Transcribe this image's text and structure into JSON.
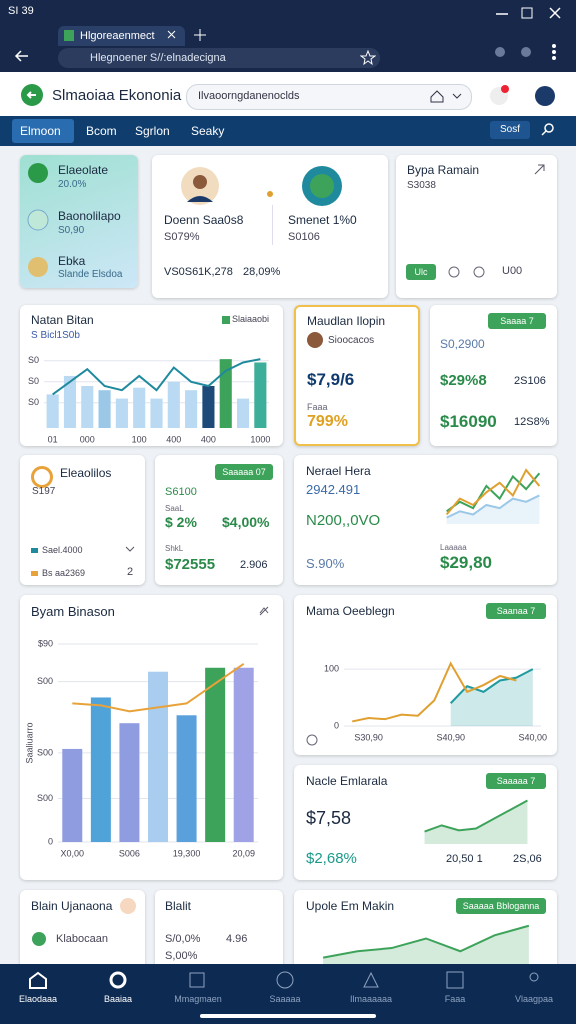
{
  "status_bar": {
    "time": "SI 39"
  },
  "browser": {
    "tab": "Hlgoreaenmect",
    "url": "Hlegnoener S//:elnadecigna"
  },
  "header": {
    "title": "Slmaoiaa Ekononia",
    "search": "Ilvaoorngdanenoclds"
  },
  "nav": {
    "tabs": [
      "Elmoon",
      "Bcom",
      "Sgrlon",
      "Seaky"
    ],
    "account": "Sosf"
  },
  "watchlist": [
    {
      "name": "Elaeolate",
      "value": "20.0%"
    },
    {
      "name": "Baonolilapo",
      "value": "S0,90"
    },
    {
      "name": "Ebka",
      "value": "Slande Elsdoa"
    }
  ],
  "people": {
    "items": [
      {
        "name": "Doenn Saa0s8",
        "value": "S079%"
      },
      {
        "name": "Smenet 1%0",
        "value": "S0106"
      }
    ],
    "footer": [
      "VS0S6",
      "1K,278",
      "28,09%"
    ]
  },
  "summary": {
    "title": "Bypa Ramain",
    "value": "S3038",
    "button": "Ulc",
    "count": "U00"
  },
  "natan": {
    "title": "Natan Bitan",
    "subtitle": "S Bicl1S0b",
    "legend": "Slaiaaobi",
    "chart": {
      "type": "combo",
      "ylim": [
        0,
        100
      ],
      "yticks": [
        {
          "value": 30,
          "label": "S0"
        },
        {
          "value": 55,
          "label": "S0"
        },
        {
          "value": 80,
          "label": "S0"
        }
      ],
      "categories": [
        "01",
        null,
        "000",
        null,
        null,
        "100",
        null,
        "400",
        null,
        "400",
        null,
        null,
        "1000"
      ],
      "series": [
        {
          "kind": "bar",
          "color": "#b9daf2",
          "colors": [
            "#b9daf2",
            "#b9daf2",
            "#b9daf2",
            "#9cc8e8",
            "#b9daf2",
            "#b9daf2",
            "#b9daf2",
            "#b9daf2",
            "#b9daf2",
            "#1e4a7a",
            "#3da35a",
            "#b9daf2",
            "#3cae9a"
          ],
          "values": [
            40,
            62,
            50,
            45,
            35,
            48,
            35,
            55,
            45,
            50,
            82,
            35,
            78
          ]
        },
        {
          "kind": "line",
          "color": "#1f8a9e",
          "values": [
            40,
            55,
            70,
            50,
            45,
            62,
            45,
            72,
            55,
            50,
            68,
            78,
            82
          ]
        }
      ]
    }
  },
  "highlight": {
    "title": "Maudlan Ilopin",
    "user": "Sioocacos",
    "value": "$7,9/6",
    "label": "Faaa",
    "change": "799%"
  },
  "stats": {
    "badge": "Saaaa 7",
    "items": [
      "S0,2900",
      "$29%8",
      "2S106",
      "$16090",
      "12S8%"
    ]
  },
  "assets": {
    "title": "Eleaolilos",
    "value": "S197",
    "rows": [
      "Sael.4000",
      "Bs aa2369"
    ],
    "count": "2"
  },
  "returns": {
    "badge": "Saaaaa 07",
    "items": [
      "S6100",
      "SaaL",
      "$ 2%",
      "$4,00%",
      "ShkL",
      "$72555",
      "2.906"
    ]
  },
  "nerael": {
    "title": "Nerael Hera",
    "items": [
      "2942.491",
      "N200,,0VO",
      "S.90%",
      "Laaaaa",
      "$29,80"
    ],
    "chart": {
      "type": "line",
      "series": [
        {
          "kind": "area",
          "color": "#9cc8e8",
          "values": [
            10,
            20,
            15,
            30,
            25,
            40,
            35,
            45
          ]
        },
        {
          "kind": "line",
          "color": "#3da35a",
          "values": [
            20,
            35,
            25,
            60,
            40,
            75,
            55,
            80
          ]
        },
        {
          "kind": "line",
          "color": "#e0a030",
          "values": [
            15,
            40,
            30,
            50,
            65,
            45,
            85,
            60
          ]
        }
      ]
    }
  },
  "byam": {
    "title": "Byam Binason",
    "chart": {
      "type": "combo",
      "ylabel": "Saaliuarro",
      "ylim": [
        0,
        100
      ],
      "yticks": [
        0,
        {
          "value": 22,
          "label": "S00"
        },
        {
          "value": 45,
          "label": "S00"
        },
        {
          "value": 81,
          "label": "S00"
        },
        {
          "value": 100,
          "label": "$90"
        }
      ],
      "categories": [
        "X0,00",
        null,
        "S006",
        null,
        "19,300",
        null,
        "20,09"
      ],
      "series": [
        {
          "kind": "bar",
          "color": "#8f9de0",
          "colors": [
            "#8f9de0",
            "#4fa3d8",
            "#8f9de0",
            "#a9cdef",
            "#5aa0dc",
            "#3da35a",
            "#9fa3e6"
          ],
          "values": [
            47,
            73,
            60,
            86,
            64,
            88,
            88
          ]
        },
        {
          "kind": "line",
          "color": "#e8a23a",
          "values": [
            70,
            69,
            66,
            68,
            70,
            80,
            90
          ]
        }
      ]
    }
  },
  "mama": {
    "title": "Mama Oeeblegn",
    "badge": "Saanaa 7",
    "chart": {
      "type": "line",
      "ylim": [
        0,
        160
      ],
      "yticks": [
        0,
        100
      ],
      "categories": [
        null,
        "S30,90",
        null,
        null,
        null,
        null,
        "S40,90",
        null,
        null,
        null,
        null,
        "S40,00"
      ],
      "series": [
        {
          "kind": "area",
          "color": "#1f9aa0",
          "values": [
            null,
            null,
            null,
            null,
            null,
            null,
            40,
            70,
            60,
            80,
            85,
            100
          ]
        },
        {
          "kind": "line",
          "color": "#e0a030",
          "values": [
            8,
            14,
            12,
            20,
            18,
            45,
            110,
            60,
            72,
            88,
            80,
            null
          ]
        }
      ]
    }
  },
  "nacle": {
    "title": "Nacle Emlarala",
    "badge": "Saaaaa 7",
    "items": [
      "$7,58",
      "$2,68%",
      "20,50 1",
      "2S,06"
    ],
    "chart": {
      "type": "line",
      "series": [
        {
          "kind": "area",
          "color": "#3da35a",
          "values": [
            20,
            30,
            22,
            25,
            40,
            55,
            70
          ]
        }
      ]
    }
  },
  "blain": {
    "title": "Blain Ujanaona",
    "item": "Klabocaan"
  },
  "blalit": {
    "title": "Blalit",
    "items": [
      "S/0,0%",
      "S,00%",
      "4.96"
    ]
  },
  "upole": {
    "title": "Upole Em Makin",
    "badge": "Saaaaa Bbloganna",
    "chart": {
      "type": "line",
      "series": [
        {
          "kind": "area",
          "color": "#3da35a",
          "values": [
            10,
            20,
            25,
            40,
            20,
            45,
            60
          ]
        }
      ]
    }
  },
  "bottom_nav": [
    "Elaodaaa",
    "Baaiaa",
    "Mmagmaen",
    "Saaaaa",
    "Ilmaaaaaa",
    "Faaa",
    "Vlaagpaa"
  ]
}
